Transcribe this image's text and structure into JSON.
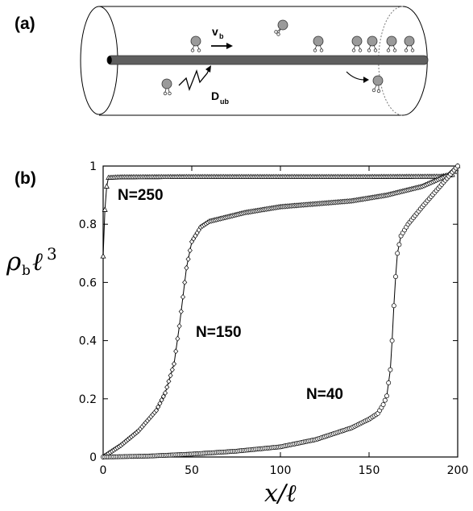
{
  "panels": {
    "a": "(a)",
    "b": "(b)"
  },
  "schematic": {
    "velocity_label": "v",
    "velocity_sub": "b",
    "diffusion_label": "D",
    "diffusion_sub": "ub"
  },
  "chart_data": {
    "type": "line",
    "xlabel": "x/ℓ",
    "ylabel": "ρbℓ3",
    "xlim": [
      0,
      200
    ],
    "ylim": [
      0,
      1
    ],
    "x_ticks": [
      0,
      50,
      100,
      150,
      200
    ],
    "y_ticks": [
      0,
      0.2,
      0.4,
      0.6,
      0.8,
      1
    ],
    "x_tick_labels": [
      "0",
      "50",
      "100",
      "150",
      "200"
    ],
    "y_tick_labels": [
      "0",
      "0.2",
      "0.4",
      "0.6",
      "0.8",
      "1"
    ],
    "grid": false,
    "series": [
      {
        "name": "N=250",
        "marker": "triangle",
        "points": [
          [
            0,
            0.69
          ],
          [
            1,
            0.85
          ],
          [
            2,
            0.93
          ],
          [
            3,
            0.96
          ],
          [
            10,
            0.962
          ],
          [
            50,
            0.963
          ],
          [
            100,
            0.963
          ],
          [
            150,
            0.963
          ],
          [
            190,
            0.964
          ],
          [
            197,
            0.97
          ],
          [
            200,
            1.0
          ]
        ]
      },
      {
        "name": "N=150",
        "marker": "diamond",
        "points": [
          [
            0,
            0.0
          ],
          [
            10,
            0.04
          ],
          [
            20,
            0.09
          ],
          [
            30,
            0.16
          ],
          [
            35,
            0.22
          ],
          [
            40,
            0.32
          ],
          [
            43,
            0.45
          ],
          [
            45,
            0.55
          ],
          [
            47,
            0.65
          ],
          [
            50,
            0.74
          ],
          [
            55,
            0.79
          ],
          [
            60,
            0.81
          ],
          [
            80,
            0.84
          ],
          [
            100,
            0.86
          ],
          [
            120,
            0.87
          ],
          [
            140,
            0.88
          ],
          [
            160,
            0.9
          ],
          [
            180,
            0.93
          ],
          [
            195,
            0.97
          ],
          [
            200,
            1.0
          ]
        ]
      },
      {
        "name": "N=40",
        "marker": "circle",
        "points": [
          [
            0,
            0.0
          ],
          [
            25,
            0.003
          ],
          [
            50,
            0.01
          ],
          [
            75,
            0.02
          ],
          [
            100,
            0.035
          ],
          [
            120,
            0.06
          ],
          [
            140,
            0.1
          ],
          [
            150,
            0.13
          ],
          [
            155,
            0.15
          ],
          [
            158,
            0.18
          ],
          [
            160,
            0.21
          ],
          [
            162,
            0.3
          ],
          [
            163,
            0.4
          ],
          [
            164,
            0.52
          ],
          [
            165,
            0.62
          ],
          [
            166,
            0.7
          ],
          [
            168,
            0.76
          ],
          [
            172,
            0.8
          ],
          [
            180,
            0.86
          ],
          [
            190,
            0.93
          ],
          [
            200,
            1.0
          ]
        ]
      }
    ]
  }
}
